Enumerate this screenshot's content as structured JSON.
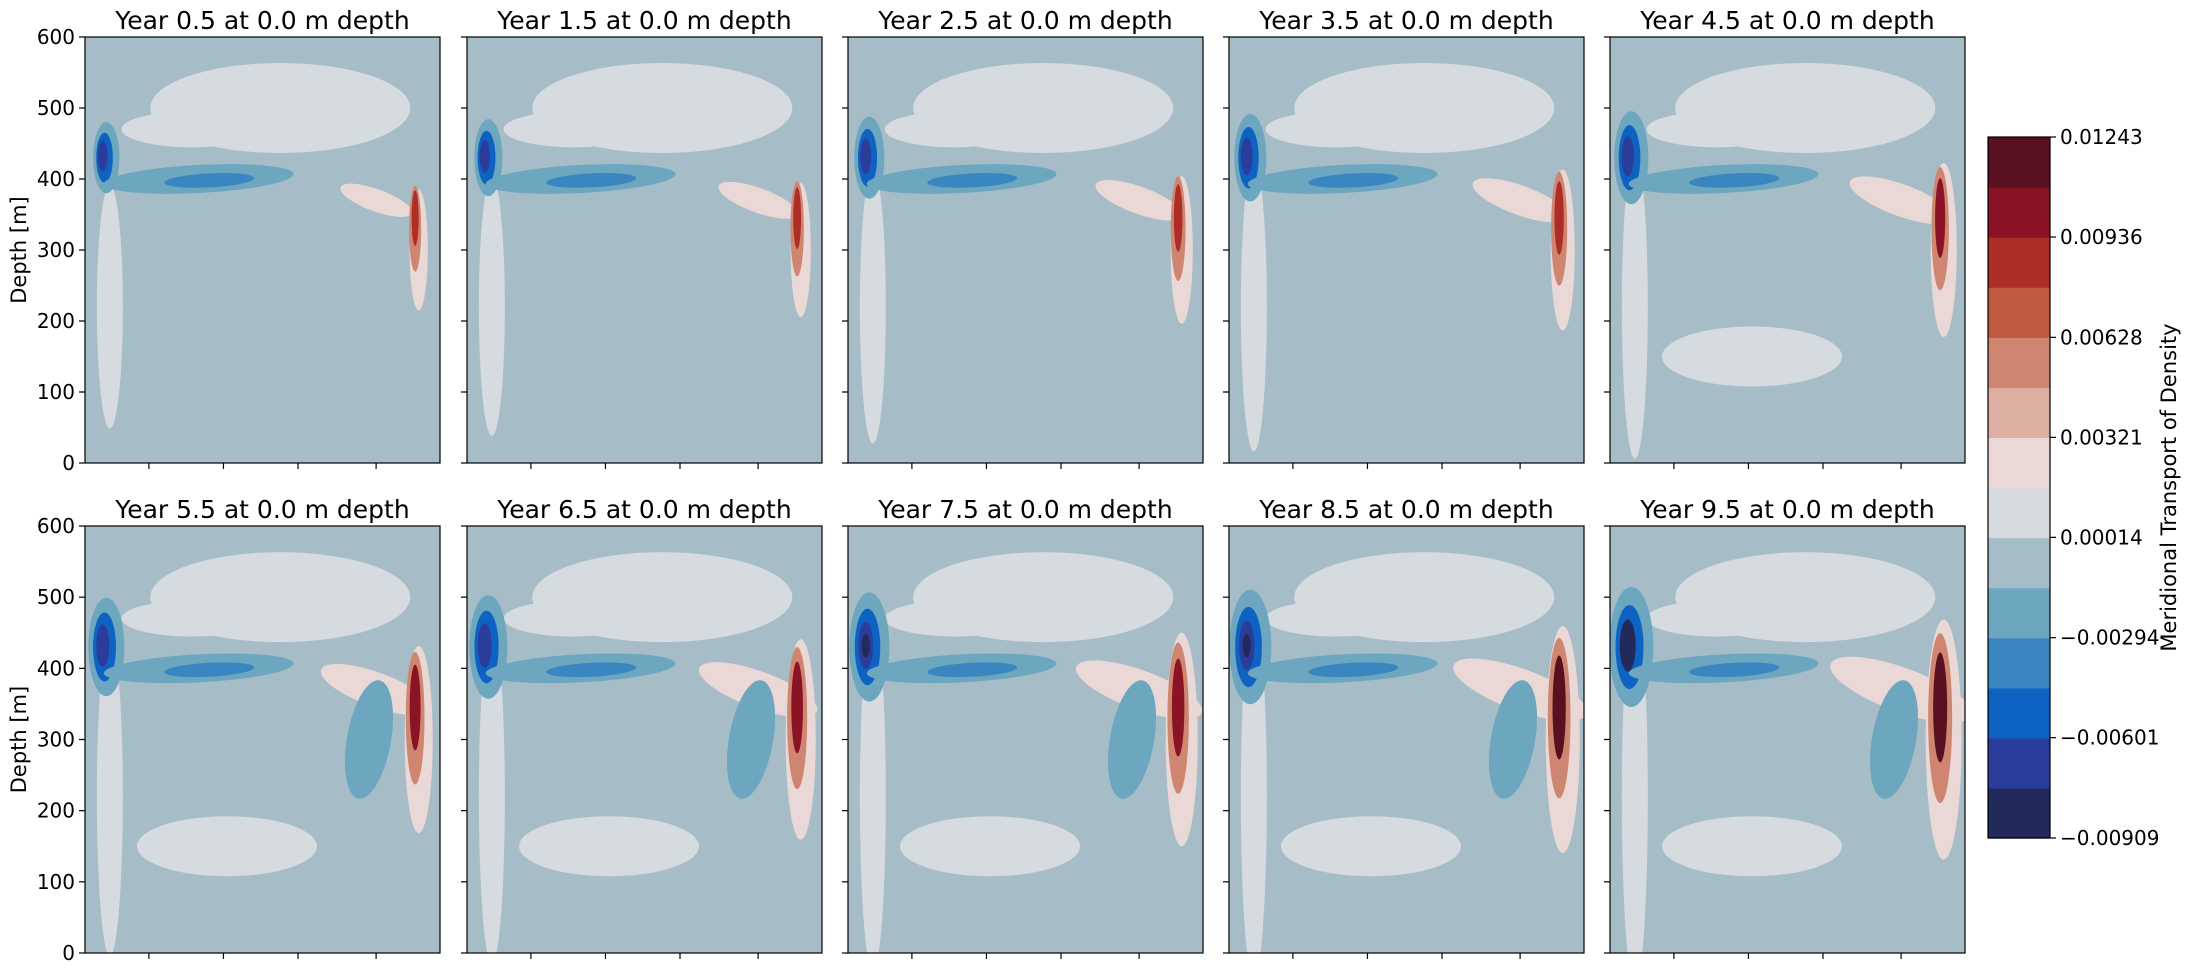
{
  "chart_data": {
    "type": "heatmap",
    "layout": {
      "rows": 2,
      "cols": 5
    },
    "ylabel": "Depth [m]",
    "ylim": [
      0,
      600
    ],
    "yticks": [
      0,
      100,
      200,
      300,
      400,
      500,
      600
    ],
    "colorbar": {
      "label": "Meridional Transport of Density",
      "tick_labels": [
        "0.01243",
        "0.00936",
        "0.00628",
        "0.00321",
        "0.00014",
        "−0.00294",
        "−0.00601",
        "−0.00909"
      ],
      "tick_values": [
        0.01243,
        0.00936,
        0.00628,
        0.00321,
        0.00014,
        -0.00294,
        -0.00601,
        -0.00909
      ],
      "levels": [
        -0.00909,
        -0.00755,
        -0.00601,
        -0.00448,
        -0.00294,
        -0.0014,
        0.00014,
        0.00167,
        0.00321,
        0.00475,
        0.00628,
        0.00782,
        0.00936,
        0.0109,
        0.01243
      ],
      "colors": [
        "#222a5c",
        "#2b3d9a",
        "#0e63c2",
        "#3a86c0",
        "#6ca6bf",
        "#a6bdc8",
        "#d6dbdf",
        "#ead8d6",
        "#ddaea2",
        "#cf8670",
        "#c05a40",
        "#ad2e27",
        "#8a1326",
        "#591021"
      ]
    },
    "panels": [
      {
        "title": "Year 0.5 at 0.0 m depth"
      },
      {
        "title": "Year 1.5 at 0.0 m depth"
      },
      {
        "title": "Year 2.5 at 0.0 m depth"
      },
      {
        "title": "Year 3.5 at 0.0 m depth"
      },
      {
        "title": "Year 4.5 at 0.0 m depth"
      },
      {
        "title": "Year 5.5 at 0.0 m depth"
      },
      {
        "title": "Year 6.5 at 0.0 m depth"
      },
      {
        "title": "Year 7.5 at 0.0 m depth"
      },
      {
        "title": "Year 8.5 at 0.0 m depth"
      },
      {
        "title": "Year 9.5 at 0.0 m depth"
      }
    ]
  }
}
